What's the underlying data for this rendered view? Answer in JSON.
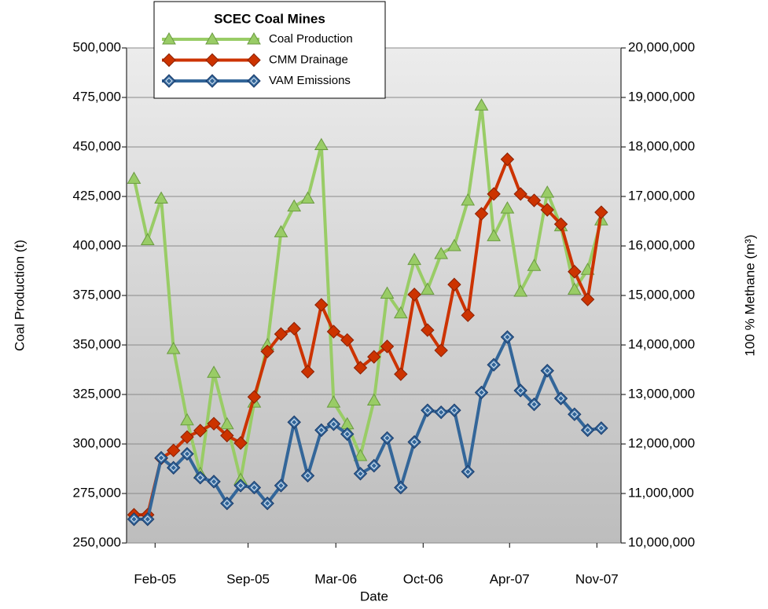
{
  "chart_data": {
    "type": "line",
    "title": "SCEC Coal Mines",
    "x_label": "Date",
    "y_label": "Coal Production (t)",
    "y2_label": "100 % Methane (m³)",
    "x": [
      "2004-12",
      "2005-01",
      "2005-02",
      "2005-03",
      "2005-04",
      "2005-05",
      "2005-06",
      "2005-07",
      "2005-08",
      "2005-09",
      "2005-10",
      "2005-11",
      "2005-12",
      "2006-01",
      "2006-02",
      "2006-03",
      "2006-04",
      "2006-05",
      "2006-06",
      "2006-07",
      "2006-08",
      "2006-09",
      "2006-10",
      "2006-11",
      "2006-12",
      "2007-01",
      "2007-02",
      "2007-03",
      "2007-04",
      "2007-05",
      "2007-06",
      "2007-07",
      "2007-08",
      "2007-09",
      "2007-10",
      "2007-11"
    ],
    "xlim": [
      "2004-11-28",
      "2007-12-30"
    ],
    "xticks": [
      {
        "value": "2005-02-01",
        "label": "Feb-05"
      },
      {
        "value": "2005-09-01",
        "label": "Sep-05"
      },
      {
        "value": "2006-03-20",
        "label": "Mar-06"
      },
      {
        "value": "2006-10-05",
        "label": "Oct-06"
      },
      {
        "value": "2007-04-20",
        "label": "Apr-07"
      },
      {
        "value": "2007-11-05",
        "label": "Nov-07"
      }
    ],
    "ylim": [
      250000,
      500000
    ],
    "yticks": [
      {
        "value": 250000,
        "label": "250,000"
      },
      {
        "value": 275000,
        "label": "275,000"
      },
      {
        "value": 300000,
        "label": "300,000"
      },
      {
        "value": 325000,
        "label": "325,000"
      },
      {
        "value": 350000,
        "label": "350,000"
      },
      {
        "value": 375000,
        "label": "375,000"
      },
      {
        "value": 400000,
        "label": "400,000"
      },
      {
        "value": 425000,
        "label": "425,000"
      },
      {
        "value": 450000,
        "label": "450,000"
      },
      {
        "value": 475000,
        "label": "475,000"
      },
      {
        "value": 500000,
        "label": "500,000"
      }
    ],
    "y2lim": [
      10000000,
      20000000
    ],
    "y2ticks": [
      {
        "value": 10000000,
        "label": "10,000,000"
      },
      {
        "value": 11000000,
        "label": "11,000,000"
      },
      {
        "value": 12000000,
        "label": "12,000,000"
      },
      {
        "value": 13000000,
        "label": "13,000,000"
      },
      {
        "value": 14000000,
        "label": "14,000,000"
      },
      {
        "value": 15000000,
        "label": "15,000,000"
      },
      {
        "value": 16000000,
        "label": "16,000,000"
      },
      {
        "value": 17000000,
        "label": "17,000,000"
      },
      {
        "value": 18000000,
        "label": "18,000,000"
      },
      {
        "value": 19000000,
        "label": "19,000,000"
      },
      {
        "value": 20000000,
        "label": "20,000,000"
      }
    ],
    "grid": true,
    "legend": "top-left",
    "series": [
      {
        "name": "Coal Production",
        "color": "#99cc66",
        "marker": "triangle",
        "axis": "y",
        "values": [
          434000,
          403000,
          424000,
          348000,
          312000,
          285000,
          336000,
          310000,
          282000,
          321000,
          350000,
          407000,
          420000,
          424000,
          451000,
          321000,
          310000,
          294000,
          322000,
          376000,
          366000,
          393000,
          378000,
          396000,
          400000,
          423000,
          471000,
          405000,
          419000,
          377000,
          390000,
          427000,
          410000,
          378000,
          388000,
          413000
        ]
      },
      {
        "name": "CMM Drainage",
        "color": "#cc3300",
        "marker": "diamond",
        "axis": "y2",
        "values": [
          10570000,
          10570000,
          11710000,
          11870000,
          12140000,
          12270000,
          12410000,
          12170000,
          12020000,
          12950000,
          13870000,
          14220000,
          14330000,
          13460000,
          14810000,
          14270000,
          14100000,
          13540000,
          13760000,
          13970000,
          13410000,
          15020000,
          14300000,
          13890000,
          15220000,
          14600000,
          16650000,
          17050000,
          17750000,
          17050000,
          16920000,
          16730000,
          16440000,
          15480000,
          14920000,
          16680000
        ]
      },
      {
        "name": "VAM Emissions",
        "color": "#336699",
        "marker": "double-diamond",
        "axis": "y2",
        "values": [
          10480000,
          10480000,
          11720000,
          11520000,
          11800000,
          11320000,
          11240000,
          10800000,
          11160000,
          11120000,
          10800000,
          11160000,
          12440000,
          11360000,
          12280000,
          12400000,
          12200000,
          11400000,
          11560000,
          12120000,
          11120000,
          12040000,
          12680000,
          12640000,
          12680000,
          11440000,
          13040000,
          13600000,
          14160000,
          13080000,
          12800000,
          13480000,
          12920000,
          12600000,
          12280000,
          12320000
        ]
      }
    ]
  }
}
